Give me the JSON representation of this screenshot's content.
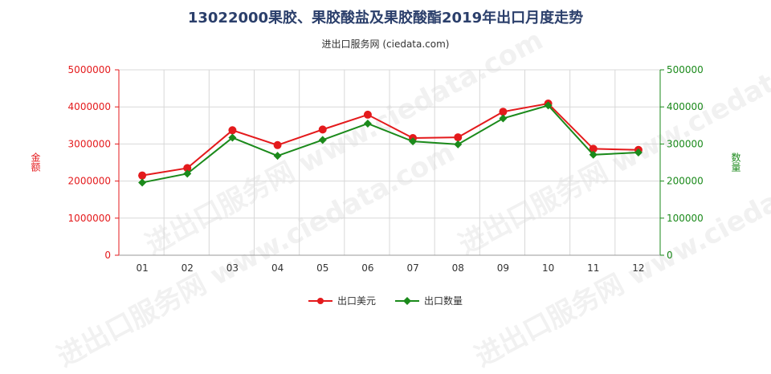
{
  "title": "13022000果胶、果胶酸盐及果胶酸酯2019年出口月度走势",
  "subtitle": "进出口服务网 (ciedata.com)",
  "watermark": "进出口服务网 www.ciedata.com",
  "colors": {
    "left": "#e41a1c",
    "right": "#1b8a1b",
    "grid": "#d8d8d8"
  },
  "chart_data": {
    "type": "line",
    "categories": [
      "01",
      "02",
      "03",
      "04",
      "05",
      "06",
      "07",
      "08",
      "09",
      "10",
      "11",
      "12"
    ],
    "ylabel_left": "金额",
    "ylabel_right": "数量",
    "ylim_left": [
      0,
      5000000
    ],
    "ylim_right": [
      0,
      500000
    ],
    "left_ticks": [
      "0",
      "1000000",
      "2000000",
      "3000000",
      "4000000",
      "5000000"
    ],
    "right_ticks": [
      "0",
      "100000",
      "200000",
      "300000",
      "400000",
      "500000"
    ],
    "grid": true,
    "legend_position": "bottom",
    "series": [
      {
        "name": "出口美元",
        "axis": "left",
        "color": "#e41a1c",
        "values": [
          2150000,
          2350000,
          3370000,
          2970000,
          3390000,
          3790000,
          3160000,
          3180000,
          3870000,
          4090000,
          2870000,
          2840000
        ]
      },
      {
        "name": "出口数量",
        "axis": "right",
        "color": "#1b8a1b",
        "values": [
          196000,
          220000,
          317000,
          268000,
          311000,
          355000,
          307000,
          299000,
          369000,
          404000,
          271000,
          277000
        ]
      }
    ]
  }
}
